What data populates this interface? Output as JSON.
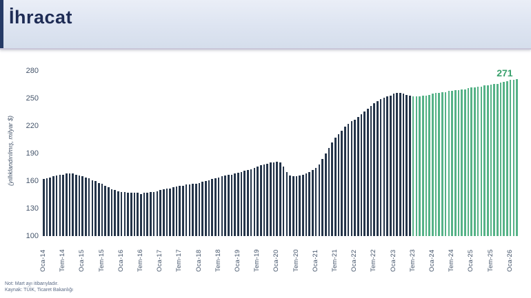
{
  "header": {
    "title": "İhracat"
  },
  "chart_data": {
    "type": "bar",
    "title": "İhracat",
    "ylabel": "(yıllıklandırılmış, milyar $)",
    "xlabel": "",
    "ylim": [
      100,
      280
    ],
    "y_ticks": [
      100,
      130,
      160,
      190,
      220,
      250,
      280
    ],
    "grid": false,
    "legend": "none",
    "x_start": "Oca-14",
    "tick_every_n_bars": 6,
    "x_tick_labels": [
      "Oca-14",
      "Tem-14",
      "Oca-15",
      "Tem-15",
      "Oca-16",
      "Tem-16",
      "Oca-17",
      "Tem-17",
      "Oca-18",
      "Tem-18",
      "Oca-19",
      "Tem-19",
      "Oca-20",
      "Tem-20",
      "Oca-21",
      "Tem-21",
      "Oca-22",
      "Tem-22",
      "Oca-23",
      "Tem-23",
      "Oca-24",
      "Tem-24",
      "Oca-25",
      "Tem-25",
      "Oca-26"
    ],
    "series": [
      {
        "name": "İhracat (yıllıklandırılmış)",
        "values": [
          162,
          163,
          164,
          165,
          166,
          167,
          167,
          168,
          168,
          168,
          167,
          166,
          165,
          164,
          163,
          161,
          160,
          158,
          157,
          155,
          153,
          151,
          150,
          149,
          148,
          148,
          147,
          147,
          147,
          147,
          146,
          147,
          147,
          148,
          148,
          149,
          150,
          151,
          152,
          152,
          153,
          154,
          155,
          155,
          156,
          156,
          157,
          157,
          158,
          159,
          160,
          161,
          162,
          163,
          164,
          165,
          166,
          167,
          167,
          168,
          169,
          170,
          171,
          172,
          173,
          174,
          176,
          177,
          178,
          179,
          180,
          180,
          181,
          180,
          176,
          170,
          166,
          165,
          165,
          166,
          167,
          168,
          170,
          172,
          174,
          178,
          184,
          190,
          196,
          202,
          207,
          211,
          215,
          219,
          222,
          225,
          227,
          230,
          233,
          236,
          239,
          242,
          245,
          247,
          249,
          251,
          252,
          253,
          255,
          256,
          256,
          255,
          254,
          253,
          252,
          252,
          252,
          253,
          253,
          254,
          255,
          256,
          256,
          257,
          257,
          258,
          258,
          259,
          259,
          260,
          260,
          261,
          262,
          262,
          263,
          263,
          264,
          264,
          265,
          266,
          266,
          267,
          268,
          269,
          270,
          270,
          271
        ]
      }
    ],
    "green_start_index": 114,
    "last_value_label": "271",
    "colors": {
      "actual_bar": "#243449",
      "program_bar": "#55b287",
      "value_label": "#3aa06c"
    }
  },
  "footer": {
    "note": "Not: Mart ayı itibarıyladır.",
    "source": "Kaynak: TÜİK, Ticaret Bakanlığı"
  }
}
